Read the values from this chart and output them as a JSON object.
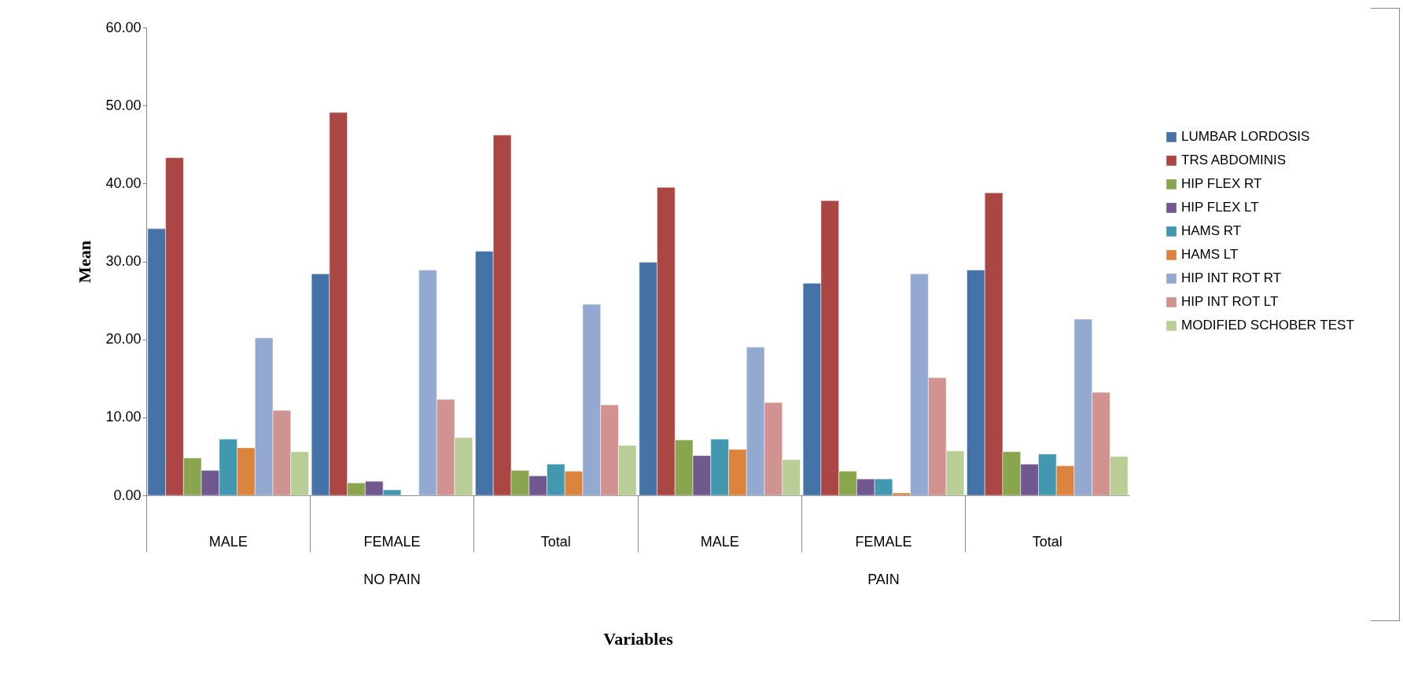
{
  "chart_data": {
    "type": "bar",
    "xlabel": "Variables",
    "ylabel": "Mean",
    "categories": [
      "MALE",
      "FEMALE",
      "Total",
      "MALE",
      "FEMALE",
      "Total"
    ],
    "annotations": [
      "NO PAIN",
      "PAIN"
    ],
    "series": [
      {
        "name": "LUMBAR LORDOSIS",
        "color": "#4572a7",
        "values": [
          34.2,
          28.4,
          31.3,
          29.9,
          27.2,
          28.9
        ]
      },
      {
        "name": "TRS ABDOMINIS",
        "color": "#aa4643",
        "values": [
          43.3,
          49.1,
          46.2,
          39.5,
          37.8,
          38.8
        ]
      },
      {
        "name": "HIP FLEX RT",
        "color": "#89a54e",
        "values": [
          4.8,
          1.6,
          3.2,
          7.1,
          3.1,
          5.6
        ]
      },
      {
        "name": "HIP FLEX LT",
        "color": "#71588f",
        "values": [
          3.2,
          1.8,
          2.5,
          5.1,
          2.1,
          4.0
        ]
      },
      {
        "name": "HAMS RT",
        "color": "#4198af",
        "values": [
          7.2,
          0.7,
          4.0,
          7.2,
          2.1,
          5.3
        ]
      },
      {
        "name": "HAMS LT",
        "color": "#db843d",
        "values": [
          6.1,
          null,
          3.1,
          5.9,
          0.3,
          3.8
        ]
      },
      {
        "name": "HIP INT ROT RT",
        "color": "#93a9cf",
        "values": [
          20.2,
          28.9,
          24.5,
          19.0,
          28.4,
          22.6
        ]
      },
      {
        "name": "HIP INT ROT LT",
        "color": "#d19392",
        "values": [
          10.9,
          12.3,
          11.6,
          11.9,
          15.1,
          13.2
        ]
      },
      {
        "name": "MODIFIED SCHOBER TEST",
        "color": "#b9cd96",
        "values": [
          5.6,
          7.4,
          6.4,
          4.6,
          5.7,
          5.0
        ]
      }
    ],
    "ylim": [
      0,
      60
    ],
    "yticks": [
      {
        "value": 0,
        "label": "0.00"
      },
      {
        "value": 10,
        "label": "10.00"
      },
      {
        "value": 20,
        "label": "20.00"
      },
      {
        "value": 30,
        "label": "30.00"
      },
      {
        "value": 40,
        "label": "40.00"
      },
      {
        "value": 50,
        "label": "50.00"
      },
      {
        "value": 60,
        "label": "60.00"
      }
    ],
    "legend": "right",
    "grid": false
  }
}
